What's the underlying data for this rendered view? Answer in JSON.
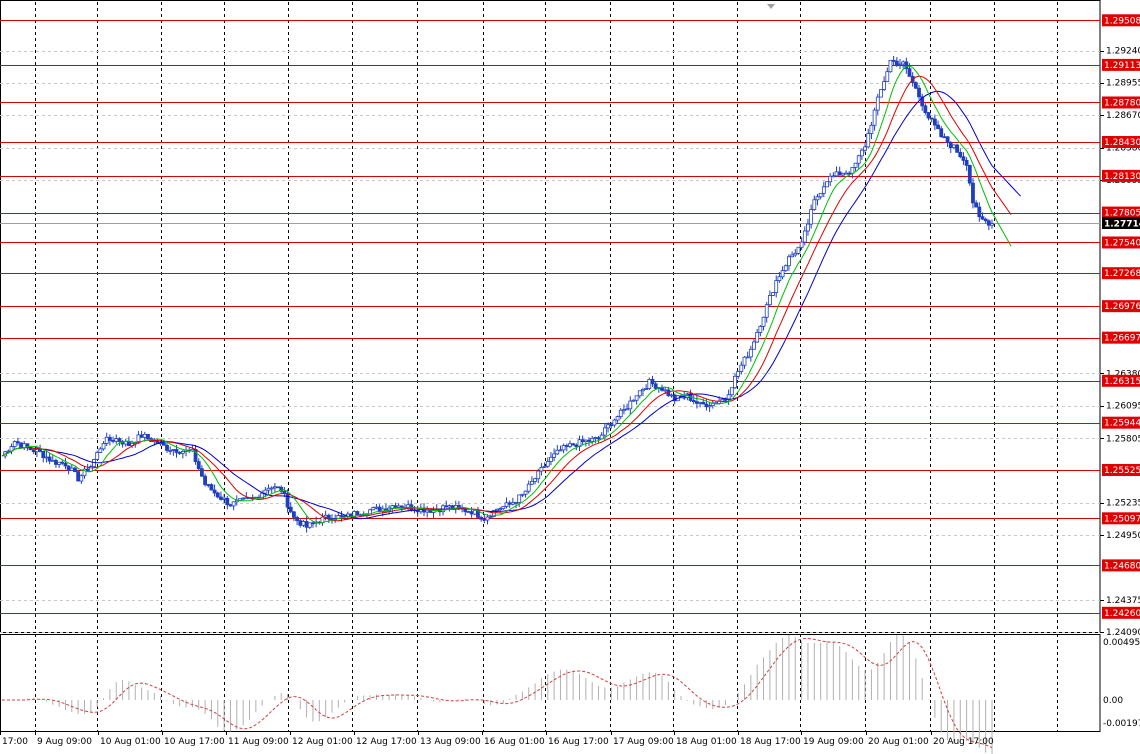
{
  "colors": {
    "background": "#ffffff",
    "grid": "#000000",
    "level_line": "#e00000",
    "level_label_bg": "#e00000",
    "candle": "#1f3fbf",
    "ma_fast": "#00c000",
    "ma_mid": "#e00000",
    "ma_slow": "#0000d0",
    "current_label_bg": "#000000",
    "oscillator": "#d04040",
    "histogram": "#b0b0b0"
  },
  "chart_data": [
    {
      "type": "candlestick",
      "title": "",
      "xlabel": "",
      "ylabel": "",
      "ylim": [
        1.2409,
        1.2967
      ],
      "grid": true,
      "y_ticks": [
        "1.29240",
        "1.28955",
        "1.28670",
        "1.28380",
        "1.28095",
        "1.26380",
        "1.26095",
        "1.25805",
        "1.25235",
        "1.24950",
        "1.24375",
        "1.24090"
      ],
      "y_tick_values": [
        1.2924,
        1.28955,
        1.2867,
        1.2838,
        1.28095,
        1.2638,
        1.26095,
        1.25805,
        1.25235,
        1.2495,
        1.24375,
        1.2409
      ],
      "x_ticks": [
        "17:00",
        "9 Aug 09:00",
        "10 Aug 01:00",
        "10 Aug 17:00",
        "11 Aug 09:00",
        "12 Aug 01:00",
        "12 Aug 17:00",
        "13 Aug 09:00",
        "16 Aug 01:00",
        "16 Aug 17:00",
        "17 Aug 09:00",
        "18 Aug 01:00",
        "18 Aug 17:00",
        "19 Aug 09:00",
        "20 Aug 01:00",
        "20 Aug 17:00"
      ],
      "levels": [
        "1.29508",
        "1.29113",
        "1.28780",
        "1.28430",
        "1.28130",
        "1.27805",
        "1.27540",
        "1.27268",
        "1.26976",
        "1.26697",
        "1.26315",
        "1.25944",
        "1.25525",
        "1.25097",
        "1.24680",
        "1.24260"
      ],
      "level_values": [
        1.29508,
        1.29113,
        1.2878,
        1.2843,
        1.2813,
        1.27805,
        1.2754,
        1.27268,
        1.26976,
        1.26697,
        1.26315,
        1.25944,
        1.25525,
        1.25097,
        1.2468,
        1.2426
      ],
      "current_price": "1.27714",
      "current_price_value": 1.27714,
      "close_path": [
        [
          0,
          1.2565
        ],
        [
          4,
          1.2578
        ],
        [
          8,
          1.2572
        ],
        [
          12,
          1.2568
        ],
        [
          16,
          1.256
        ],
        [
          20,
          1.2558
        ],
        [
          24,
          1.2545
        ],
        [
          28,
          1.2556
        ],
        [
          32,
          1.2578
        ],
        [
          36,
          1.258
        ],
        [
          40,
          1.2575
        ],
        [
          44,
          1.2583
        ],
        [
          48,
          1.2578
        ],
        [
          52,
          1.2572
        ],
        [
          56,
          1.257
        ],
        [
          60,
          1.2568
        ],
        [
          64,
          1.254
        ],
        [
          68,
          1.253
        ],
        [
          72,
          1.2522
        ],
        [
          76,
          1.2525
        ],
        [
          80,
          1.2528
        ],
        [
          84,
          1.2538
        ],
        [
          88,
          1.2535
        ],
        [
          92,
          1.251
        ],
        [
          96,
          1.2502
        ],
        [
          100,
          1.2508
        ],
        [
          104,
          1.2512
        ],
        [
          108,
          1.251
        ],
        [
          112,
          1.2515
        ],
        [
          116,
          1.2517
        ],
        [
          120,
          1.2518
        ],
        [
          124,
          1.2522
        ],
        [
          128,
          1.252
        ],
        [
          132,
          1.2518
        ],
        [
          136,
          1.2517
        ],
        [
          140,
          1.252
        ],
        [
          144,
          1.2518
        ],
        [
          148,
          1.2516
        ],
        [
          152,
          1.251
        ],
        [
          156,
          1.2518
        ],
        [
          160,
          1.2522
        ],
        [
          164,
          1.253
        ],
        [
          168,
          1.2545
        ],
        [
          172,
          1.256
        ],
        [
          176,
          1.257
        ],
        [
          180,
          1.2575
        ],
        [
          184,
          1.2578
        ],
        [
          188,
          1.258
        ],
        [
          192,
          1.2595
        ],
        [
          196,
          1.2605
        ],
        [
          200,
          1.262
        ],
        [
          204,
          1.263
        ],
        [
          208,
          1.2625
        ],
        [
          212,
          1.2615
        ],
        [
          216,
          1.2618
        ],
        [
          220,
          1.261
        ],
        [
          224,
          1.2612
        ],
        [
          228,
          1.2616
        ],
        [
          232,
          1.264
        ],
        [
          236,
          1.266
        ],
        [
          240,
          1.269
        ],
        [
          244,
          1.272
        ],
        [
          248,
          1.274
        ],
        [
          252,
          1.2752
        ],
        [
          256,
          1.279
        ],
        [
          260,
          1.281
        ],
        [
          264,
          1.2815
        ],
        [
          268,
          1.2818
        ],
        [
          272,
          1.284
        ],
        [
          276,
          1.288
        ],
        [
          280,
          1.2915
        ],
        [
          284,
          1.2912
        ],
        [
          288,
          1.289
        ],
        [
          292,
          1.2865
        ],
        [
          296,
          1.2848
        ],
        [
          300,
          1.2838
        ],
        [
          304,
          1.2825
        ],
        [
          306,
          1.279
        ],
        [
          308,
          1.2775
        ],
        [
          312,
          1.2771
        ]
      ],
      "oscillator_range": [
        -0.00197,
        0.004958
      ],
      "oscillator_ticks": [
        "0.004958",
        "0.00",
        "-0.00197"
      ]
    }
  ]
}
